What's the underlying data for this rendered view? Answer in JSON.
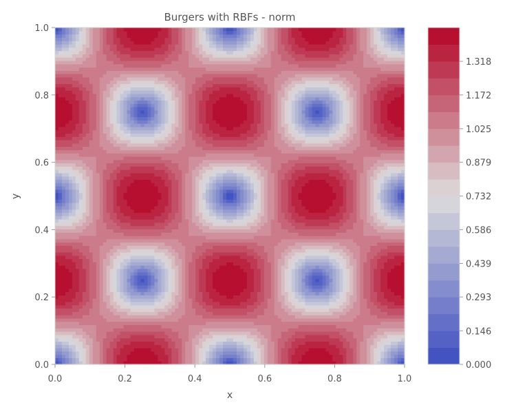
{
  "chart_data": {
    "type": "heatmap",
    "subtype": "filled-contour",
    "title": "Burgers with RBFs - norm",
    "xlabel": "x",
    "ylabel": "y",
    "xlim": [
      0.0,
      1.0
    ],
    "ylim": [
      0.0,
      1.0
    ],
    "x_ticks": [
      "0.0",
      "0.2",
      "0.4",
      "0.6",
      "0.8",
      "1.0"
    ],
    "y_ticks": [
      "0.0",
      "0.2",
      "0.4",
      "0.6",
      "0.8",
      "1.0"
    ],
    "field": "sqrt(u^2+v^2) with u = sin(2*pi*x)*cos(2*pi*y)*k, v = -cos(2*pi*x)*sin(2*pi*y)*k",
    "field_max": 1.465,
    "grid_resolution": 20,
    "colormap": "coolwarm",
    "colormap_endpoints": [
      "#3b4cc0",
      "#dddcdc",
      "#b40426"
    ],
    "num_levels": 20,
    "colorbar": {
      "min": 0.0,
      "max": 1.465,
      "ticks": [
        "0.000",
        "0.146",
        "0.293",
        "0.439",
        "0.586",
        "0.732",
        "0.879",
        "1.025",
        "1.172",
        "1.318"
      ],
      "position": "right"
    },
    "grid": false
  }
}
